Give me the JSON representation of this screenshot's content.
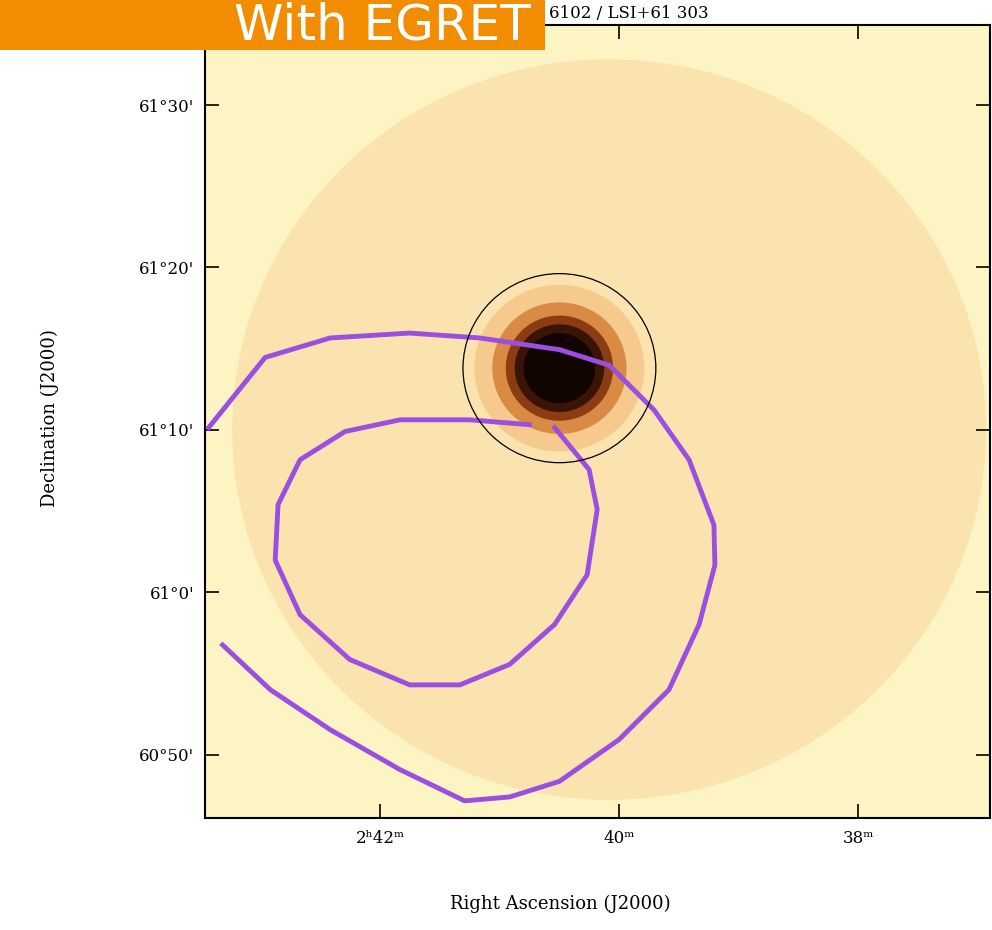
{
  "chart_data": {
    "type": "image",
    "banner": "With EGRET",
    "title": "6102 / LSI+61 303",
    "xlabel": "Right Ascension (J2000)",
    "ylabel": "Declination (J2000)",
    "xlim": [
      40.865,
      39.225
    ],
    "ylim": [
      60.768,
      61.582
    ],
    "xticks": [
      {
        "value": 40.5,
        "label": "2ʰ42ᵐ"
      },
      {
        "value": 40.0,
        "label": "40ᵐ"
      },
      {
        "value": 39.5,
        "label": "38ᵐ"
      }
    ],
    "yticks": [
      {
        "value": 60.8333,
        "label": "60°50'"
      },
      {
        "value": 61.0,
        "label": "61°0'"
      },
      {
        "value": 61.1667,
        "label": "61°10'"
      },
      {
        "value": 61.3333,
        "label": "61°20'"
      },
      {
        "value": 61.5,
        "label": "61°30'"
      }
    ],
    "field": {
      "ra": 40.021,
      "dec": 61.167,
      "radius": 0.38
    },
    "source": {
      "ra": 40.125,
      "dec": 61.23,
      "radius": 0.045
    },
    "circle": {
      "ra": 40.125,
      "dec": 61.23,
      "radius": 0.097
    },
    "curves": [
      {
        "color": "#9b4fe0",
        "ra": [
          40.858,
          40.74,
          40.604,
          40.438,
          40.292,
          40.125,
          40.021,
          39.927,
          39.854,
          39.802,
          39.8,
          39.833,
          39.896,
          40.0,
          40.125,
          40.229,
          40.323,
          40.458,
          40.604,
          40.729,
          40.829
        ],
        "dec": [
          61.169,
          61.241,
          61.261,
          61.266,
          61.261,
          61.249,
          61.233,
          61.187,
          61.136,
          61.069,
          61.028,
          60.967,
          60.9,
          60.849,
          60.806,
          60.79,
          60.786,
          60.818,
          60.859,
          60.9,
          60.946
        ]
      },
      {
        "color": "#9b4fe0",
        "ra": [
          40.135,
          40.063,
          40.046,
          40.067,
          40.135,
          40.229,
          40.333,
          40.438,
          40.563,
          40.667,
          40.719,
          40.713,
          40.667,
          40.573,
          40.458,
          40.313,
          40.188
        ],
        "dec": [
          61.169,
          61.126,
          61.085,
          61.018,
          60.967,
          60.926,
          60.905,
          60.905,
          60.931,
          60.977,
          61.033,
          61.09,
          61.136,
          61.165,
          61.177,
          61.177,
          61.172
        ]
      }
    ]
  }
}
